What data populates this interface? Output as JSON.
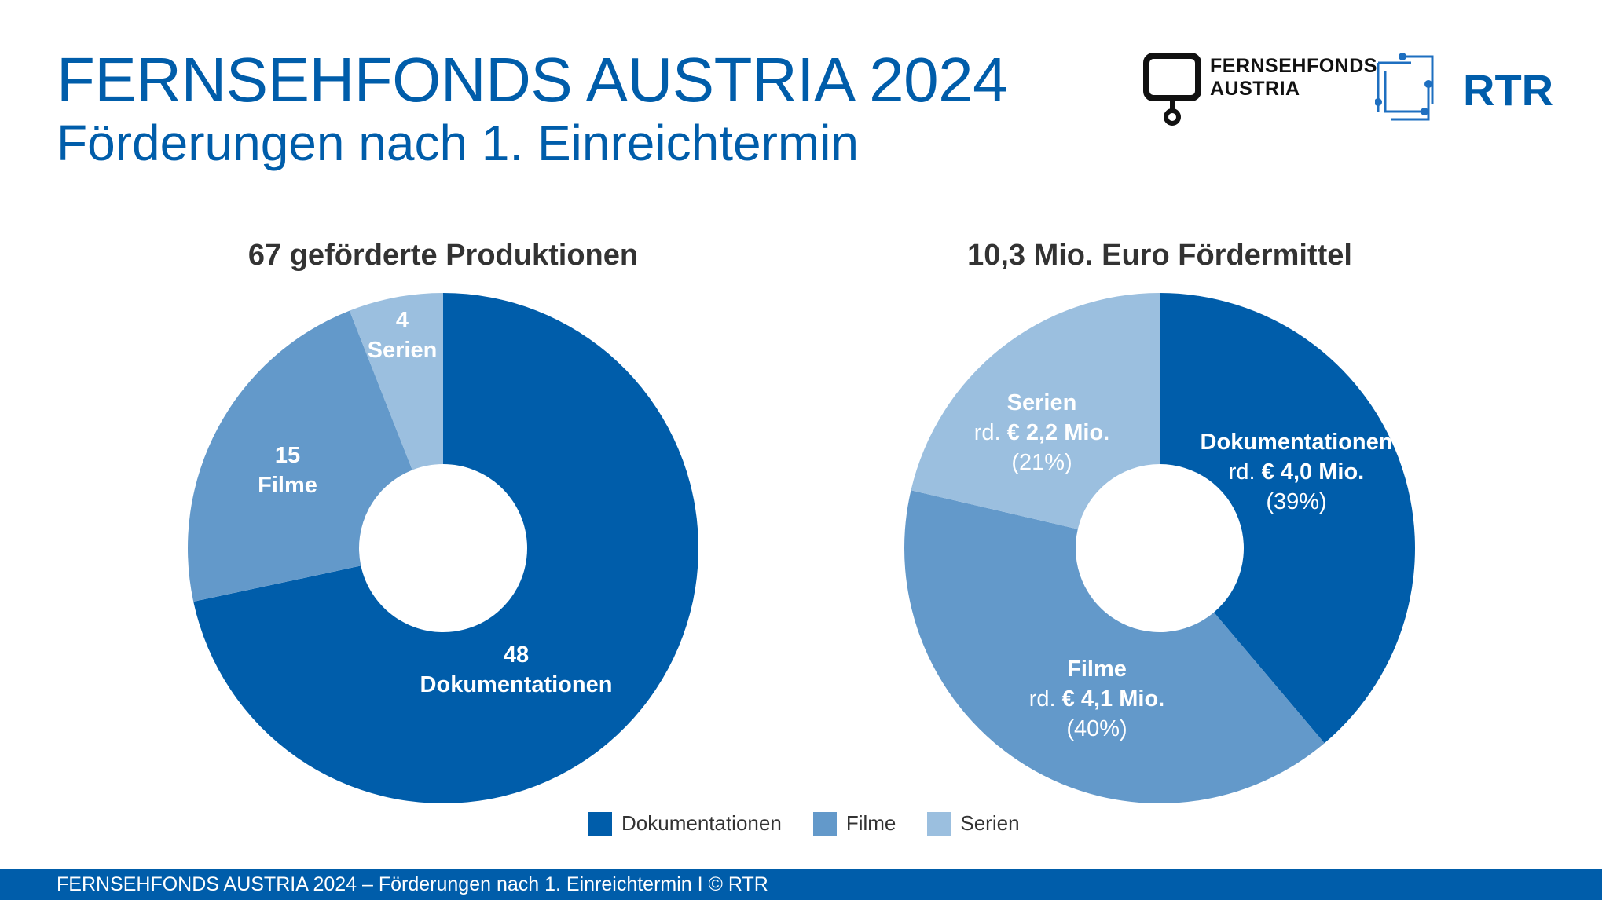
{
  "header": {
    "title": "FERNSEHFONDS AUSTRIA 2024",
    "subtitle": "Förderungen nach 1. Einreichtermin",
    "logo_ff": [
      "FERNSEHFONDS",
      "AUSTRIA"
    ],
    "logo_rtr": "RTR"
  },
  "colors": {
    "Dokumentationen": "#005DAA",
    "Filme": "#6399CA",
    "Serien": "#9BBFDF"
  },
  "chart_data": [
    {
      "type": "pie",
      "donut": true,
      "title": "67 geförderte Produktionen",
      "categories": [
        "Dokumentationen",
        "Filme",
        "Serien"
      ],
      "values": [
        48,
        15,
        4
      ],
      "labels": [
        {
          "value": "48",
          "name": "Dokumentationen"
        },
        {
          "value": "15",
          "name": "Filme"
        },
        {
          "value": "4",
          "name": "Serien"
        }
      ]
    },
    {
      "type": "pie",
      "donut": true,
      "title": "10,3 Mio. Euro Fördermittel",
      "categories": [
        "Dokumentationen",
        "Filme",
        "Serien"
      ],
      "values": [
        4.0,
        4.1,
        2.2
      ],
      "unit": "Mio. €",
      "labels": [
        {
          "name": "Dokumentationen",
          "prefix": "rd.",
          "amount": "€ 4,0 Mio.",
          "percent": "(39%)"
        },
        {
          "name": "Filme",
          "prefix": "rd.",
          "amount": "€ 4,1 Mio.",
          "percent": "(40%)"
        },
        {
          "name": "Serien",
          "prefix": "rd.",
          "amount": "€ 2,2 Mio.",
          "percent": "(21%)"
        }
      ]
    }
  ],
  "legend": [
    "Dokumentationen",
    "Filme",
    "Serien"
  ],
  "footer": "FERNSEHFONDS AUSTRIA 2024 – Förderungen nach 1. Einreichtermin  I  © RTR"
}
